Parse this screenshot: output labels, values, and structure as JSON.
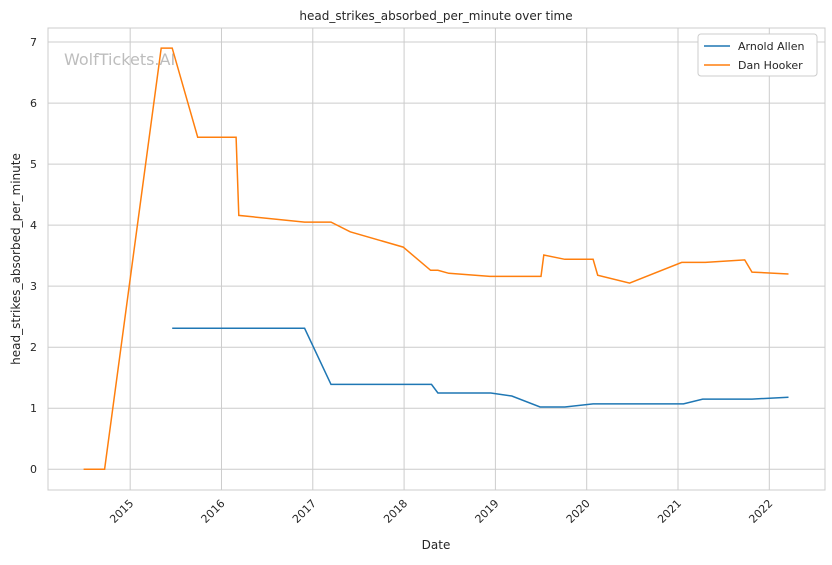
{
  "chart_data": {
    "type": "line",
    "title": "head_strikes_absorbed_per_minute over time",
    "xlabel": "Date",
    "ylabel": "head_strikes_absorbed_per_minute",
    "xlim": [
      2014.1,
      2022.61
    ],
    "ylim": [
      -0.34,
      7.23
    ],
    "xticks": [
      2015,
      2016,
      2017,
      2018,
      2019,
      2020,
      2021,
      2022
    ],
    "xtick_labels": [
      "2015",
      "2016",
      "2017",
      "2018",
      "2019",
      "2020",
      "2021",
      "2022"
    ],
    "yticks": [
      0,
      1,
      2,
      3,
      4,
      5,
      6,
      7
    ],
    "ytick_labels": [
      "0",
      "1",
      "2",
      "3",
      "4",
      "5",
      "6",
      "7"
    ],
    "grid": true,
    "legend_position": "top-right",
    "watermark": "WolfTickets.AI",
    "series": [
      {
        "name": "Arnold Allen",
        "color": "#1f77b4",
        "x": [
          2015.46,
          2016.91,
          2017.2,
          2018.3,
          2018.37,
          2018.95,
          2019.18,
          2019.49,
          2019.76,
          2020.07,
          2021.06,
          2021.27,
          2021.81,
          2022.21
        ],
        "y": [
          2.31,
          2.31,
          1.39,
          1.39,
          1.25,
          1.25,
          1.2,
          1.02,
          1.02,
          1.07,
          1.07,
          1.15,
          1.15,
          1.18
        ]
      },
      {
        "name": "Dan Hooker",
        "color": "#ff7f0e",
        "x": [
          2014.49,
          2014.72,
          2015.34,
          2015.46,
          2015.74,
          2016.16,
          2016.19,
          2016.91,
          2017.2,
          2017.41,
          2017.99,
          2018.29,
          2018.37,
          2018.49,
          2018.94,
          2019.5,
          2019.53,
          2019.76,
          2020.07,
          2020.12,
          2020.47,
          2021.04,
          2021.3,
          2021.73,
          2021.81,
          2022.21
        ],
        "y": [
          0,
          0,
          6.9,
          6.9,
          5.44,
          5.44,
          4.16,
          4.05,
          4.05,
          3.89,
          3.64,
          3.26,
          3.26,
          3.21,
          3.16,
          3.16,
          3.51,
          3.44,
          3.44,
          3.18,
          3.05,
          3.39,
          3.39,
          3.43,
          3.23,
          3.2
        ]
      }
    ]
  }
}
